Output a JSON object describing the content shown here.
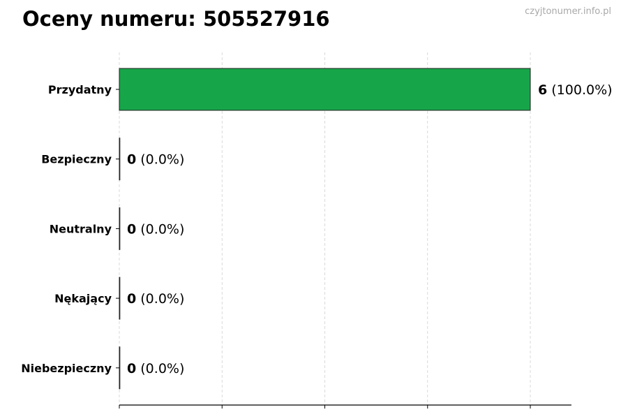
{
  "chart_data": {
    "type": "bar",
    "orientation": "horizontal",
    "title": "Oceny numeru: 505527916",
    "watermark": "czyjtonumer.info.pl",
    "categories": [
      "Przydatny",
      "Bezpieczny",
      "Neutralny",
      "Nękający",
      "Niebezpieczny"
    ],
    "values": [
      6,
      0,
      0,
      0,
      0
    ],
    "data_labels": [
      {
        "count": "6",
        "percent": "(100.0%)"
      },
      {
        "count": "0",
        "percent": "(0.0%)"
      },
      {
        "count": "0",
        "percent": "(0.0%)"
      },
      {
        "count": "0",
        "percent": "(0.0%)"
      },
      {
        "count": "0",
        "percent": "(0.0%)"
      }
    ],
    "xlim": [
      0,
      6.6
    ],
    "xticks": [
      0,
      1.5,
      3,
      4.5,
      6
    ],
    "xtick_labels_shown": false,
    "grid": "x, dashed",
    "bar_color": "#17a54a",
    "xlabel": "",
    "ylabel": ""
  }
}
